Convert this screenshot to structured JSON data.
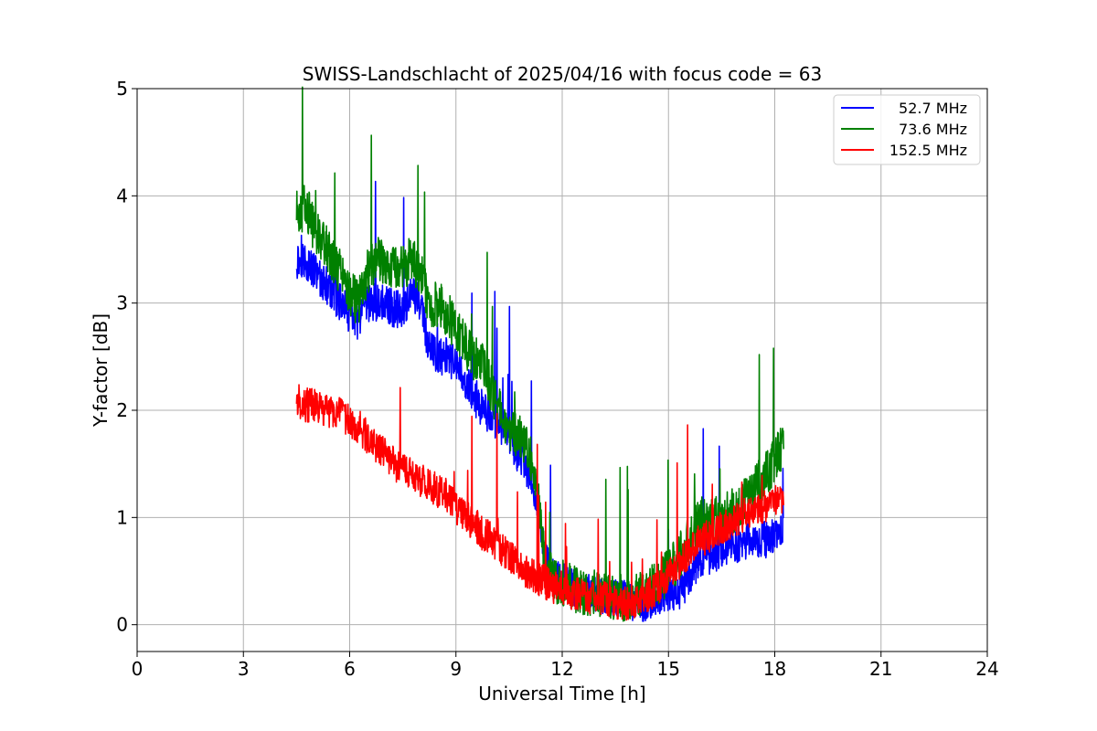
{
  "chart_data": {
    "type": "line",
    "title": "SWISS-Landschlacht of 2025/04/16 with focus code = 63",
    "xlabel": "Universal Time [h]",
    "ylabel": "Y-factor [dB]",
    "xlim": [
      0,
      24
    ],
    "ylim": [
      -0.25,
      5
    ],
    "xticks": [
      0,
      3,
      6,
      9,
      12,
      15,
      18,
      21,
      24
    ],
    "yticks": [
      0,
      1,
      2,
      3,
      4,
      5
    ],
    "grid": true,
    "legend_position": "top-right",
    "series": [
      {
        "name": "52.7 MHz",
        "color": "#0000ff",
        "x": [
          4.5,
          4.75,
          5.0,
          5.25,
          5.5,
          5.75,
          6.0,
          6.25,
          6.5,
          6.75,
          7.0,
          7.25,
          7.5,
          7.75,
          8.0,
          8.25,
          8.5,
          8.75,
          9.0,
          9.25,
          9.5,
          9.75,
          10.0,
          10.25,
          10.5,
          10.75,
          11.0,
          11.25,
          11.5,
          11.75,
          12.0,
          12.25,
          12.5,
          12.75,
          13.0,
          13.25,
          13.5,
          13.75,
          14.0,
          14.25,
          14.5,
          14.75,
          15.0,
          15.25,
          15.5,
          15.75,
          16.0,
          16.25,
          16.5,
          16.75,
          17.0,
          17.25,
          17.5,
          17.75,
          18.0,
          18.25
        ],
        "y": [
          3.4,
          3.4,
          3.3,
          3.2,
          3.1,
          3.0,
          2.9,
          2.8,
          3.0,
          3.0,
          3.0,
          2.95,
          2.95,
          3.1,
          3.0,
          2.55,
          2.5,
          2.5,
          2.4,
          2.3,
          2.15,
          2.0,
          1.95,
          1.85,
          1.75,
          1.6,
          1.45,
          1.15,
          0.65,
          0.45,
          0.4,
          0.35,
          0.3,
          0.3,
          0.3,
          0.25,
          0.25,
          0.25,
          0.2,
          0.2,
          0.2,
          0.25,
          0.3,
          0.3,
          0.4,
          0.55,
          0.65,
          0.65,
          0.7,
          0.75,
          0.75,
          0.8,
          0.8,
          0.8,
          0.85,
          0.85
        ],
        "noise": 0.18
      },
      {
        "name": "73.6 MHz",
        "color": "#008000",
        "x": [
          4.5,
          4.75,
          5.0,
          5.25,
          5.5,
          5.75,
          6.0,
          6.25,
          6.5,
          6.75,
          7.0,
          7.25,
          7.5,
          7.75,
          8.0,
          8.25,
          8.5,
          8.75,
          9.0,
          9.25,
          9.5,
          9.75,
          10.0,
          10.25,
          10.5,
          10.75,
          11.0,
          11.25,
          11.5,
          11.75,
          12.0,
          12.25,
          12.5,
          12.75,
          13.0,
          13.25,
          13.5,
          13.75,
          14.0,
          14.25,
          14.5,
          14.75,
          15.0,
          15.25,
          15.5,
          15.75,
          16.0,
          16.25,
          16.5,
          16.75,
          17.0,
          17.25,
          17.5,
          17.75,
          18.0,
          18.25
        ],
        "y": [
          3.85,
          3.9,
          3.7,
          3.6,
          3.4,
          3.3,
          3.1,
          3.0,
          3.3,
          3.4,
          3.4,
          3.35,
          3.35,
          3.4,
          3.3,
          3.0,
          3.0,
          2.9,
          2.75,
          2.6,
          2.5,
          2.4,
          2.2,
          2.0,
          1.85,
          1.75,
          1.7,
          1.4,
          0.6,
          0.4,
          0.4,
          0.35,
          0.3,
          0.3,
          0.3,
          0.25,
          0.25,
          0.25,
          0.25,
          0.3,
          0.35,
          0.4,
          0.5,
          0.6,
          0.75,
          0.9,
          1.0,
          1.0,
          1.0,
          1.05,
          1.1,
          1.2,
          1.3,
          1.4,
          1.55,
          1.65
        ],
        "noise": 0.22
      },
      {
        "name": "152.5 MHz",
        "color": "#ff0000",
        "x": [
          4.5,
          4.75,
          5.0,
          5.25,
          5.5,
          5.75,
          6.0,
          6.25,
          6.5,
          6.75,
          7.0,
          7.25,
          7.5,
          7.75,
          8.0,
          8.25,
          8.5,
          8.75,
          9.0,
          9.25,
          9.5,
          9.75,
          10.0,
          10.25,
          10.5,
          10.75,
          11.0,
          11.25,
          11.5,
          11.75,
          12.0,
          12.25,
          12.5,
          12.75,
          13.0,
          13.25,
          13.5,
          13.75,
          14.0,
          14.25,
          14.5,
          14.75,
          15.0,
          15.25,
          15.5,
          15.75,
          16.0,
          16.25,
          16.5,
          16.75,
          17.0,
          17.25,
          17.5,
          17.75,
          18.0,
          18.25
        ],
        "y": [
          2.1,
          2.05,
          2.05,
          2.0,
          2.0,
          1.95,
          1.9,
          1.85,
          1.75,
          1.65,
          1.6,
          1.5,
          1.45,
          1.4,
          1.35,
          1.3,
          1.25,
          1.2,
          1.1,
          1.0,
          0.95,
          0.85,
          0.8,
          0.7,
          0.65,
          0.55,
          0.5,
          0.45,
          0.4,
          0.35,
          0.35,
          0.3,
          0.3,
          0.25,
          0.25,
          0.25,
          0.2,
          0.2,
          0.2,
          0.25,
          0.3,
          0.35,
          0.45,
          0.55,
          0.65,
          0.75,
          0.8,
          0.85,
          0.9,
          0.95,
          1.0,
          1.05,
          1.1,
          1.1,
          1.15,
          1.2
        ],
        "noise": 0.16
      }
    ]
  }
}
